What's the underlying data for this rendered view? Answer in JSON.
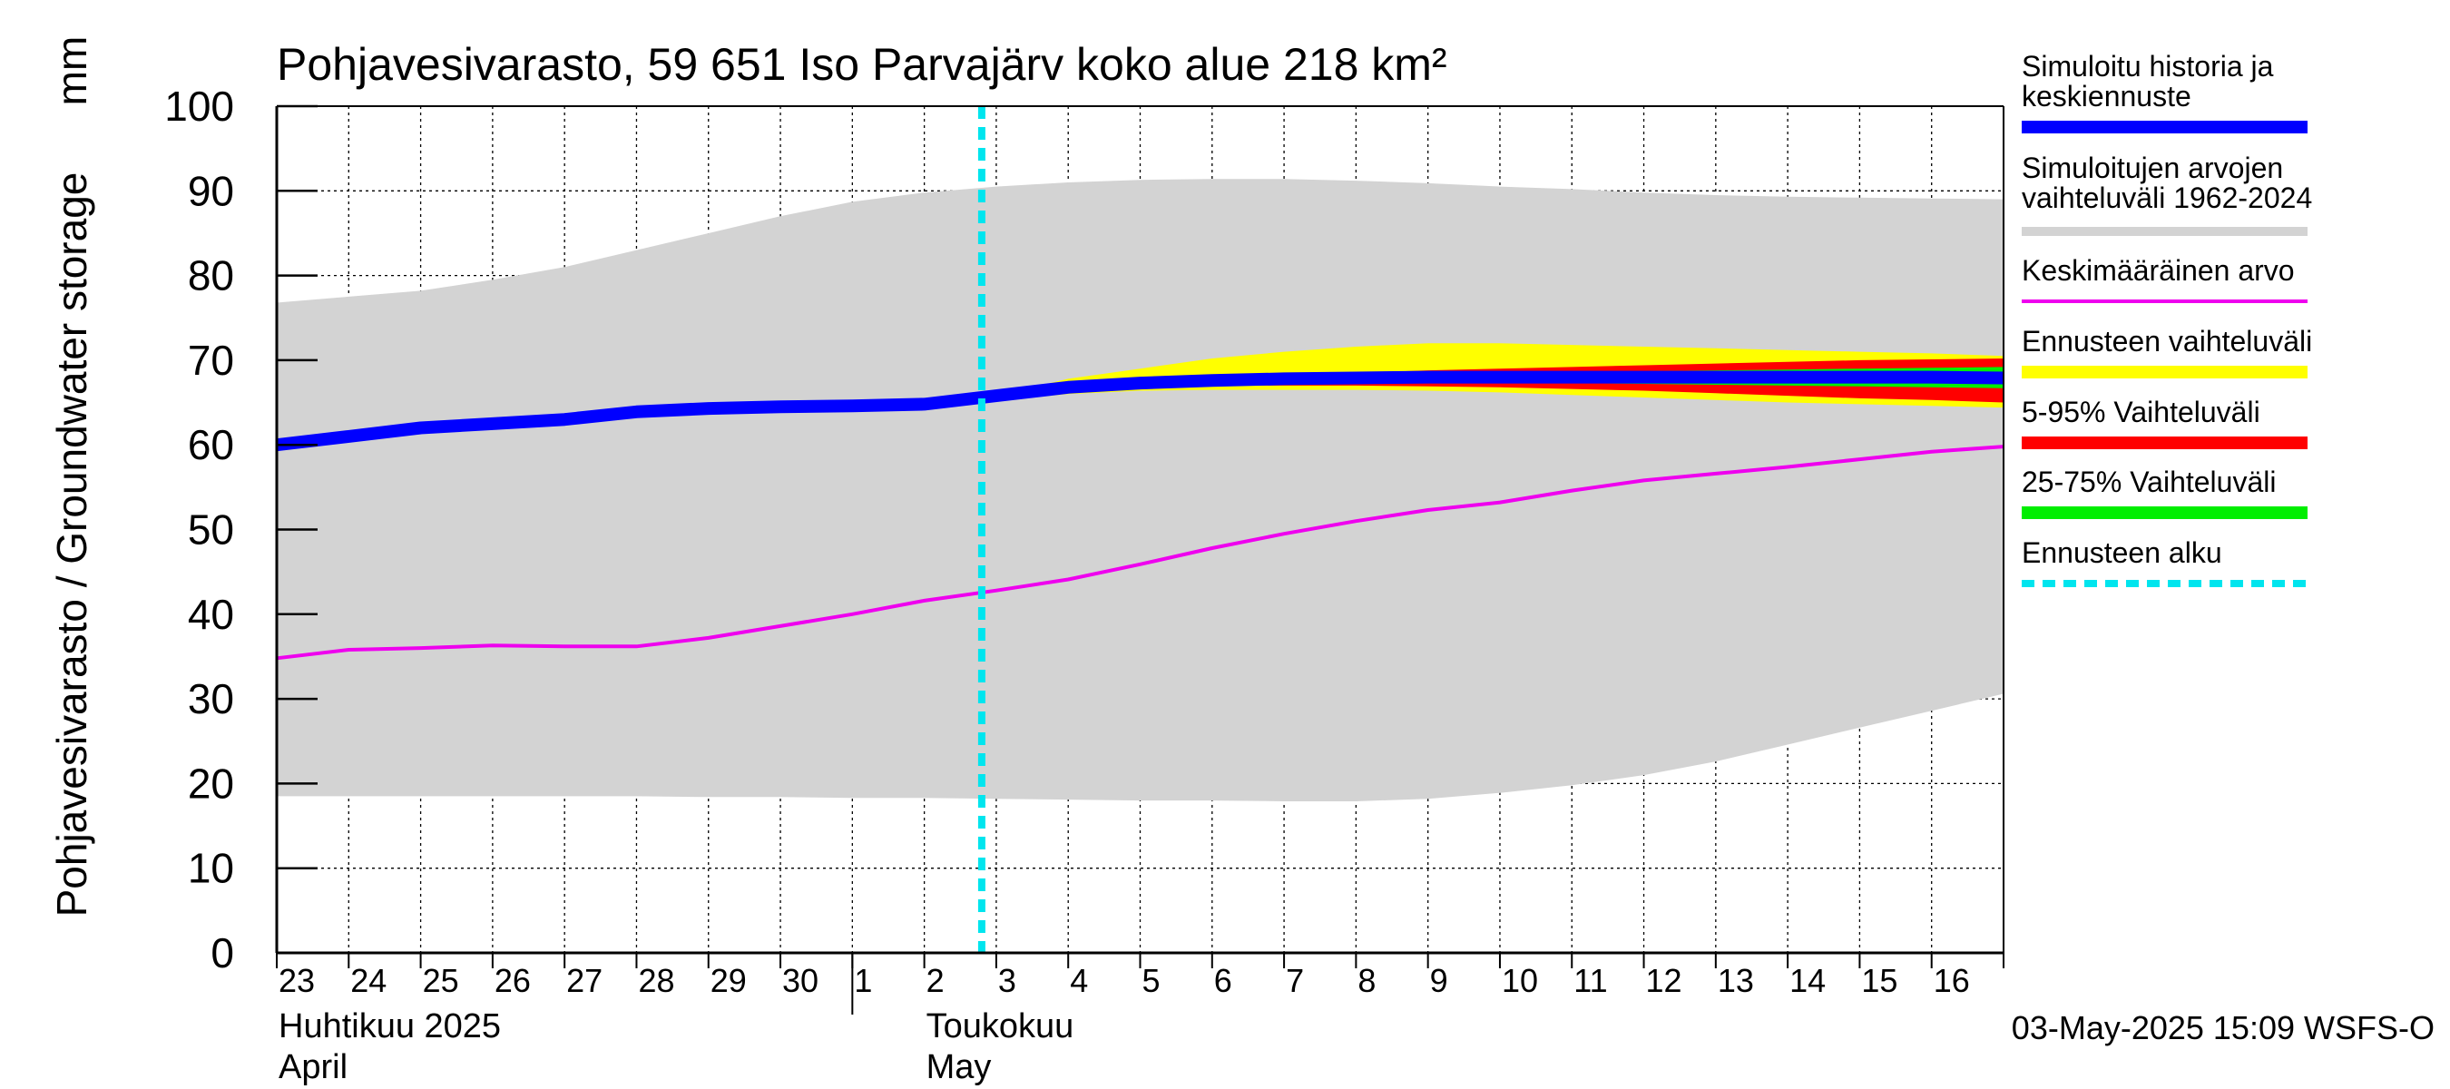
{
  "chart_data": {
    "type": "area",
    "title": "Pohjavesivarasto, 59 651 Iso Parvajärv koko alue 218 km²",
    "ylabel": "Pohjavesivarasto / Groundwater storage",
    "yunit": "mm",
    "ylim": [
      0,
      100
    ],
    "yticks": [
      0,
      10,
      20,
      30,
      40,
      50,
      60,
      70,
      80,
      90,
      100
    ],
    "grid": true,
    "day_labels": [
      "23",
      "24",
      "25",
      "26",
      "27",
      "28",
      "29",
      "30",
      "1",
      "2",
      "3",
      "4",
      "5",
      "6",
      "7",
      "8",
      "9",
      "10",
      "11",
      "12",
      "13",
      "14",
      "15",
      "16"
    ],
    "month_labels": [
      {
        "line1": "Huhtikuu  2025",
        "line2": "April",
        "day": "23"
      },
      {
        "line1": "Toukokuu",
        "line2": "May",
        "day": "2"
      }
    ],
    "forecast_start": "3",
    "timestamp": "03-May-2025 15:09 WSFS-O",
    "legend_position": "right",
    "legend": [
      {
        "label": "Simuloitu historia ja keskiennuste",
        "color": "#0000ff",
        "style": "solid"
      },
      {
        "label": "Simuloitujen arvojen vaihteluväli 1962-2024",
        "color": "#d3d3d3",
        "style": "solid"
      },
      {
        "label": "Keskimääräinen arvo",
        "color": "#ee00ee",
        "style": "solid"
      },
      {
        "label": "Ennusteen vaihteluväli",
        "color": "#ffff00",
        "style": "solid"
      },
      {
        "label": "5-95% Vaihteluväli",
        "color": "#ff0000",
        "style": "solid"
      },
      {
        "label": "25-75% Vaihteluväli",
        "color": "#00ee00",
        "style": "solid"
      },
      {
        "label": "Ennusteen alku",
        "color": "#00e5ee",
        "style": "dashed"
      }
    ],
    "series": [
      {
        "name": "Simuloitujen arvojen vaihteluväli 1962-2024",
        "kind": "band",
        "x": [
          23,
          24,
          25,
          26,
          27,
          28,
          29,
          30,
          31,
          32,
          33,
          34,
          35,
          36,
          37,
          38,
          39,
          40,
          41,
          42,
          43,
          44,
          45,
          46,
          47
        ],
        "upper": [
          76.8,
          77.5,
          78.2,
          79.5,
          81.0,
          83.0,
          85.0,
          87.0,
          88.7,
          89.8,
          90.5,
          91.0,
          91.3,
          91.4,
          91.4,
          91.2,
          90.9,
          90.5,
          90.2,
          89.8,
          89.5,
          89.3,
          89.2,
          89.1,
          89.0
        ],
        "lower": [
          18.5,
          18.5,
          18.5,
          18.5,
          18.5,
          18.5,
          18.4,
          18.4,
          18.3,
          18.3,
          18.2,
          18.1,
          18.0,
          18.0,
          17.9,
          17.9,
          18.2,
          18.9,
          19.8,
          21.0,
          22.6,
          24.6,
          26.6,
          28.6,
          30.6
        ]
      },
      {
        "name": "Ennusteen vaihteluväli",
        "kind": "band",
        "x": [
          33,
          34,
          35,
          36,
          37,
          38,
          39,
          40,
          41,
          42,
          43,
          44,
          45,
          46,
          47
        ],
        "upper": [
          65.8,
          67.8,
          69.0,
          70.2,
          71.0,
          71.6,
          72.0,
          72.0,
          71.8,
          71.6,
          71.4,
          71.2,
          71.0,
          70.8,
          70.5
        ],
        "lower": [
          65.2,
          66.0,
          66.4,
          66.5,
          66.5,
          66.5,
          66.4,
          66.2,
          65.9,
          65.6,
          65.3,
          65.0,
          64.8,
          64.6,
          64.4
        ]
      },
      {
        "name": "5-95% Vaihteluväli",
        "kind": "band",
        "x": [
          33,
          34,
          35,
          36,
          37,
          38,
          39,
          40,
          41,
          42,
          43,
          44,
          45,
          46,
          47
        ],
        "upper": [
          65.7,
          66.8,
          67.5,
          67.9,
          68.2,
          68.5,
          68.8,
          69.0,
          69.2,
          69.4,
          69.6,
          69.8,
          70.0,
          70.1,
          70.2
        ],
        "lower": [
          65.3,
          66.2,
          66.8,
          67.0,
          67.0,
          67.0,
          66.9,
          66.8,
          66.6,
          66.4,
          66.1,
          65.8,
          65.5,
          65.3,
          65.0
        ]
      },
      {
        "name": "25-75% Vaihteluväli",
        "kind": "band",
        "x": [
          33,
          34,
          35,
          36,
          37,
          38,
          39,
          40,
          41,
          42,
          43,
          44,
          45,
          46,
          47
        ],
        "upper": [
          65.6,
          66.6,
          67.2,
          67.6,
          67.9,
          68.1,
          68.3,
          68.5,
          68.6,
          68.7,
          68.8,
          68.9,
          69.0,
          69.1,
          69.2
        ],
        "lower": [
          65.4,
          66.4,
          67.0,
          67.3,
          67.4,
          67.5,
          67.5,
          67.4,
          67.3,
          67.2,
          67.1,
          67.0,
          66.9,
          66.8,
          66.7
        ]
      },
      {
        "name": "Simuloitu historia ja keskiennuste",
        "kind": "line",
        "x": [
          23,
          24,
          25,
          26,
          27,
          28,
          29,
          30,
          31,
          32,
          33,
          34,
          35,
          36,
          37,
          38,
          39,
          40,
          41,
          42,
          43,
          44,
          45,
          46,
          47
        ],
        "values": [
          60.0,
          61.0,
          62.0,
          62.5,
          63.0,
          63.9,
          64.3,
          64.5,
          64.6,
          64.8,
          65.8,
          66.8,
          67.3,
          67.6,
          67.8,
          67.9,
          68.0,
          68.0,
          68.0,
          68.0,
          68.0,
          68.0,
          68.0,
          68.0,
          67.9
        ]
      },
      {
        "name": "Keskimääräinen arvo",
        "kind": "line",
        "x": [
          23,
          24,
          25,
          26,
          27,
          28,
          29,
          30,
          31,
          32,
          33,
          34,
          35,
          36,
          37,
          38,
          39,
          40,
          41,
          42,
          43,
          44,
          45,
          46,
          47
        ],
        "values": [
          34.8,
          35.8,
          36.0,
          36.3,
          36.2,
          36.2,
          37.2,
          38.6,
          40.0,
          41.6,
          42.8,
          44.1,
          45.9,
          47.8,
          49.5,
          51.0,
          52.3,
          53.2,
          54.6,
          55.8,
          56.6,
          57.4,
          58.3,
          59.2,
          59.8
        ]
      }
    ]
  }
}
